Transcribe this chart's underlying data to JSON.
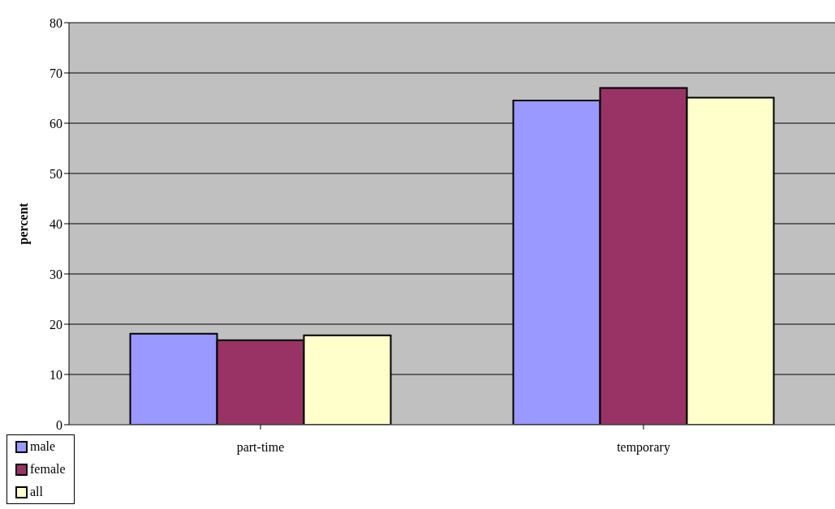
{
  "chart_data": {
    "type": "bar",
    "ylabel": "percent",
    "categories": [
      "part-time",
      "temporary"
    ],
    "series": [
      {
        "name": "male",
        "color": "#9999ff",
        "values": [
          18.1,
          64.5
        ]
      },
      {
        "name": "female",
        "color": "#993366",
        "values": [
          16.8,
          67.0
        ]
      },
      {
        "name": "all",
        "color": "#ffffcc",
        "values": [
          17.8,
          65.1
        ]
      }
    ],
    "ylim": [
      0,
      80
    ],
    "yticks": [
      0,
      10,
      20,
      30,
      40,
      50,
      60,
      70,
      80
    ],
    "grid": "y",
    "legend": "bottom left"
  }
}
